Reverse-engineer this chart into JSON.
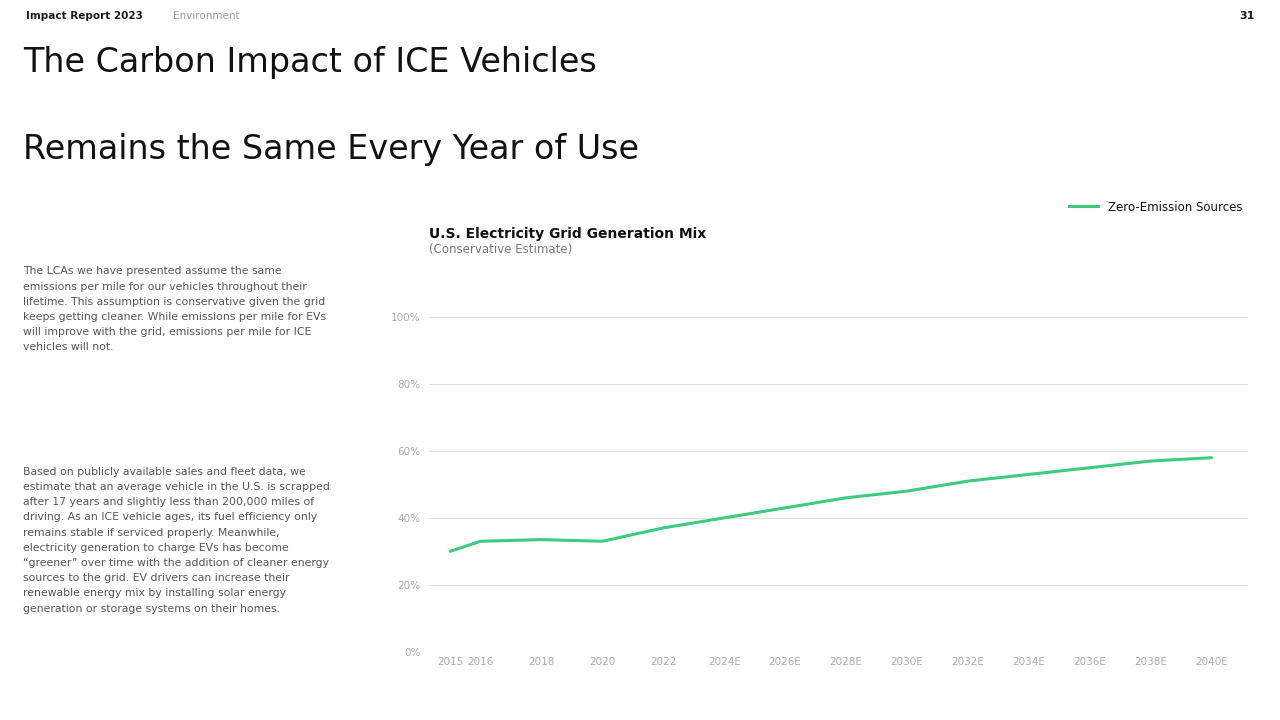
{
  "page_number": "31",
  "header_left": "Impact Report 2023",
  "header_center": "Environment",
  "main_title_line1": "The Carbon Impact of ICE Vehicles",
  "main_title_line2": "Remains the Same Every Year of Use",
  "left_para1": "The LCAs we have presented assume the same\nemissions per mile for our vehicles throughout their\nlifetime. This assumption is conservative given the grid\nkeeps getting cleaner. While emissions per mile for EVs\nwill improve with the grid, emissions per mile for ICE\nvehicles will not.",
  "left_para2": "Based on publicly available sales and fleet data, we\nestimate that an average vehicle in the U.S. is scrapped\nafter 17 years and slightly less than 200,000 miles of\ndriving. As an ICE vehicle ages, its fuel efficiency only\nremains stable if serviced properly. Meanwhile,\nelectricity generation to charge EVs has become\n“greener” over time with the addition of cleaner energy\nsources to the grid. EV drivers can increase their\nrenewable energy mix by installing solar energy\ngeneration or storage systems on their homes.",
  "chart_title": "U.S. Electricity Grid Generation Mix",
  "chart_subtitle": "(Conservative Estimate)",
  "legend_label": "Zero-Emission Sources",
  "line_color": "#3dcc7e",
  "background_color": "#ffffff",
  "grid_color": "#e0e0e0",
  "x_labels": [
    "2015",
    "2016",
    "2018",
    "2020",
    "2022",
    "2024E",
    "2026E",
    "2028E",
    "2030E",
    "2032E",
    "2034E",
    "2036E",
    "2038E",
    "2040E"
  ],
  "x_values": [
    2015,
    2016,
    2018,
    2020,
    2022,
    2024,
    2026,
    2028,
    2030,
    2032,
    2034,
    2036,
    2038,
    2040
  ],
  "y_values": [
    30,
    33,
    33.5,
    33,
    37,
    40,
    43,
    46,
    48,
    51,
    53,
    55,
    57,
    58
  ],
  "y_ticks": [
    0,
    20,
    40,
    60,
    80,
    100
  ],
  "title_color": "#111111",
  "header_color": "#1a1a1a",
  "subheader_color": "#999999",
  "text_color": "#555555",
  "chart_title_color": "#111111",
  "chart_subtitle_color": "#777777",
  "tick_label_color": "#aaaaaa"
}
